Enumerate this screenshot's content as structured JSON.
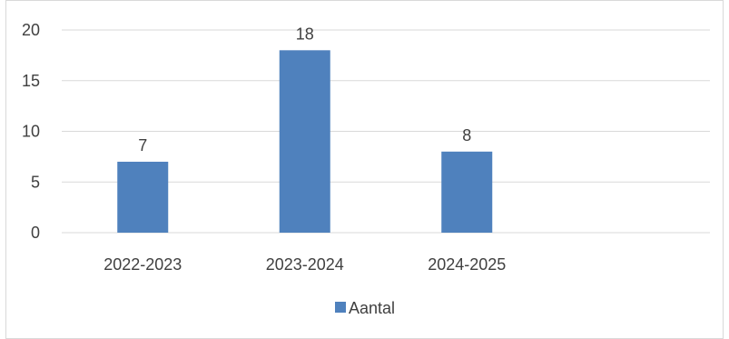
{
  "chart_data": {
    "type": "bar",
    "title": "",
    "xlabel": "",
    "ylabel": "",
    "categories": [
      "2022-2023",
      "2023-2024",
      "2024-2025",
      ""
    ],
    "series": [
      {
        "name": "Aantal",
        "values": [
          7,
          18,
          8,
          null
        ],
        "color": "#4f81bd"
      }
    ],
    "ylim": [
      0,
      20
    ],
    "yticks": [
      0,
      5,
      10,
      15,
      20
    ],
    "grid": true,
    "legend_position": "bottom",
    "data_labels": true
  }
}
